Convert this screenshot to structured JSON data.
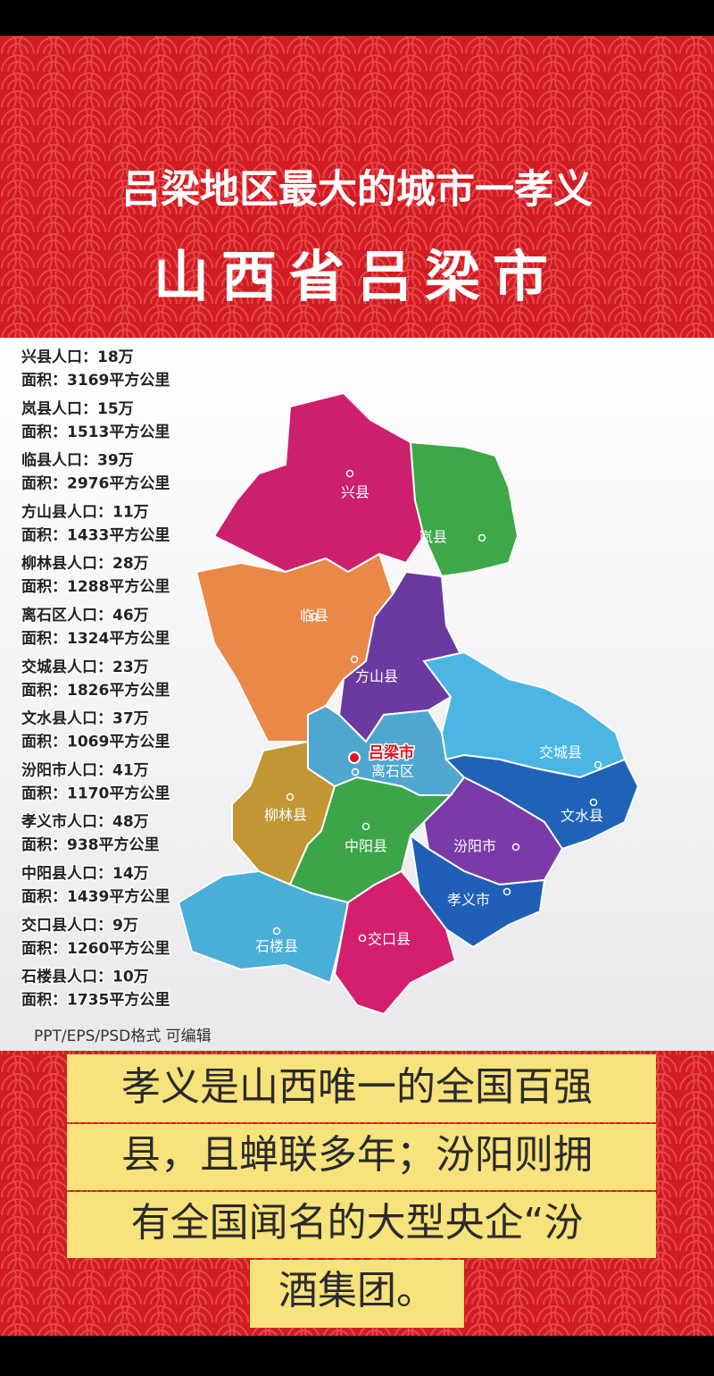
{
  "header": {
    "title": "吕梁地区最大的城市一孝义",
    "subtitle": "山西省吕梁市"
  },
  "stats": [
    {
      "population": "兴县人口：18万",
      "area": "面积：3169平方公里"
    },
    {
      "population": "岚县人口：15万",
      "area": "面积：1513平方公里"
    },
    {
      "population": "临县人口：39万",
      "area": "面积：2976平方公里"
    },
    {
      "population": "方山县人口：11万",
      "area": "面积：1433平方公里"
    },
    {
      "population": "柳林县人口：28万",
      "area": "面积：1288平方公里"
    },
    {
      "population": "离石区人口：46万",
      "area": "面积：1324平方公里"
    },
    {
      "population": "交城县人口：23万",
      "area": "面积：1826平方公里"
    },
    {
      "population": "文水县人口：37万",
      "area": "面积：1069平方公里"
    },
    {
      "population": "汾阳市人口：41万",
      "area": "面积：1170平方公里"
    },
    {
      "population": "孝义市人口：48万",
      "area": "面积：938平方公里"
    },
    {
      "population": "中阳县人口：14万",
      "area": "面积：1439平方公里"
    },
    {
      "population": "交口县人口：9万",
      "area": "面积：1260平方公里"
    },
    {
      "population": "石楼县人口：10万",
      "area": "面积：1735平方公里"
    }
  ],
  "map": {
    "city": "吕梁市",
    "regions": [
      "兴县",
      "岚县",
      "临县",
      "方山县",
      "离石区",
      "交城县",
      "文水县",
      "汾阳市",
      "孝义市",
      "柳林县",
      "中阳县",
      "石楼县",
      "交口县"
    ]
  },
  "note": "PPT/EPS/PSD格式 可编辑",
  "caption": [
    "孝义是山西唯一的全国百强",
    "县，且蝉联多年；汾阳则拥",
    "有全国闻名的大型央企“汾",
    "酒集团。"
  ]
}
